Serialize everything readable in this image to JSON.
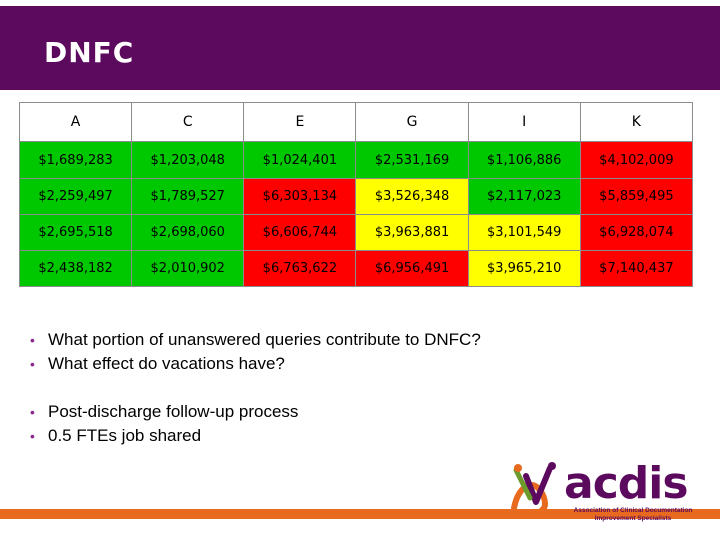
{
  "slide": {
    "title": "DNFC"
  },
  "table": {
    "headers": [
      "A",
      "C",
      "E",
      "G",
      "I",
      "K"
    ],
    "rows": [
      [
        {
          "v": "$1,689,283",
          "bg": "#00c800"
        },
        {
          "v": "$1,203,048",
          "bg": "#00c800"
        },
        {
          "v": "$1,024,401",
          "bg": "#00c800"
        },
        {
          "v": "$2,531,169",
          "bg": "#00c800"
        },
        {
          "v": "$1,106,886",
          "bg": "#00c800"
        },
        {
          "v": "$4,102,009",
          "bg": "#ff0000"
        }
      ],
      [
        {
          "v": "$2,259,497",
          "bg": "#00c800"
        },
        {
          "v": "$1,789,527",
          "bg": "#00c800"
        },
        {
          "v": "$6,303,134",
          "bg": "#ff0000"
        },
        {
          "v": "$3,526,348",
          "bg": "#ffff00"
        },
        {
          "v": "$2,117,023",
          "bg": "#00c800"
        },
        {
          "v": "$5,859,495",
          "bg": "#ff0000"
        }
      ],
      [
        {
          "v": "$2,695,518",
          "bg": "#00c800"
        },
        {
          "v": "$2,698,060",
          "bg": "#00c800"
        },
        {
          "v": "$6,606,744",
          "bg": "#ff0000"
        },
        {
          "v": "$3,963,881",
          "bg": "#ffff00"
        },
        {
          "v": "$3,101,549",
          "bg": "#ffff00"
        },
        {
          "v": "$6,928,074",
          "bg": "#ff0000"
        }
      ],
      [
        {
          "v": "$2,438,182",
          "bg": "#00c800"
        },
        {
          "v": "$2,010,902",
          "bg": "#00c800"
        },
        {
          "v": "$6,763,622",
          "bg": "#ff0000"
        },
        {
          "v": "$6,956,491",
          "bg": "#ff0000"
        },
        {
          "v": "$3,965,210",
          "bg": "#ffff00"
        },
        {
          "v": "$7,140,437",
          "bg": "#ff0000"
        }
      ]
    ]
  },
  "bullets_group1": [
    "What portion of unanswered queries contribute to DNFC?",
    "What effect do vacations have?"
  ],
  "bullets_group2": [
    "Post-discharge follow-up process",
    "0.5 FTEs job shared"
  ],
  "logo": {
    "name": "acdis",
    "subtitle": "Association of Clinical Documentation Improvement Specialists"
  },
  "colors": {
    "brand_purple": "#5c0a5e",
    "accent_orange": "#e86a1e"
  }
}
